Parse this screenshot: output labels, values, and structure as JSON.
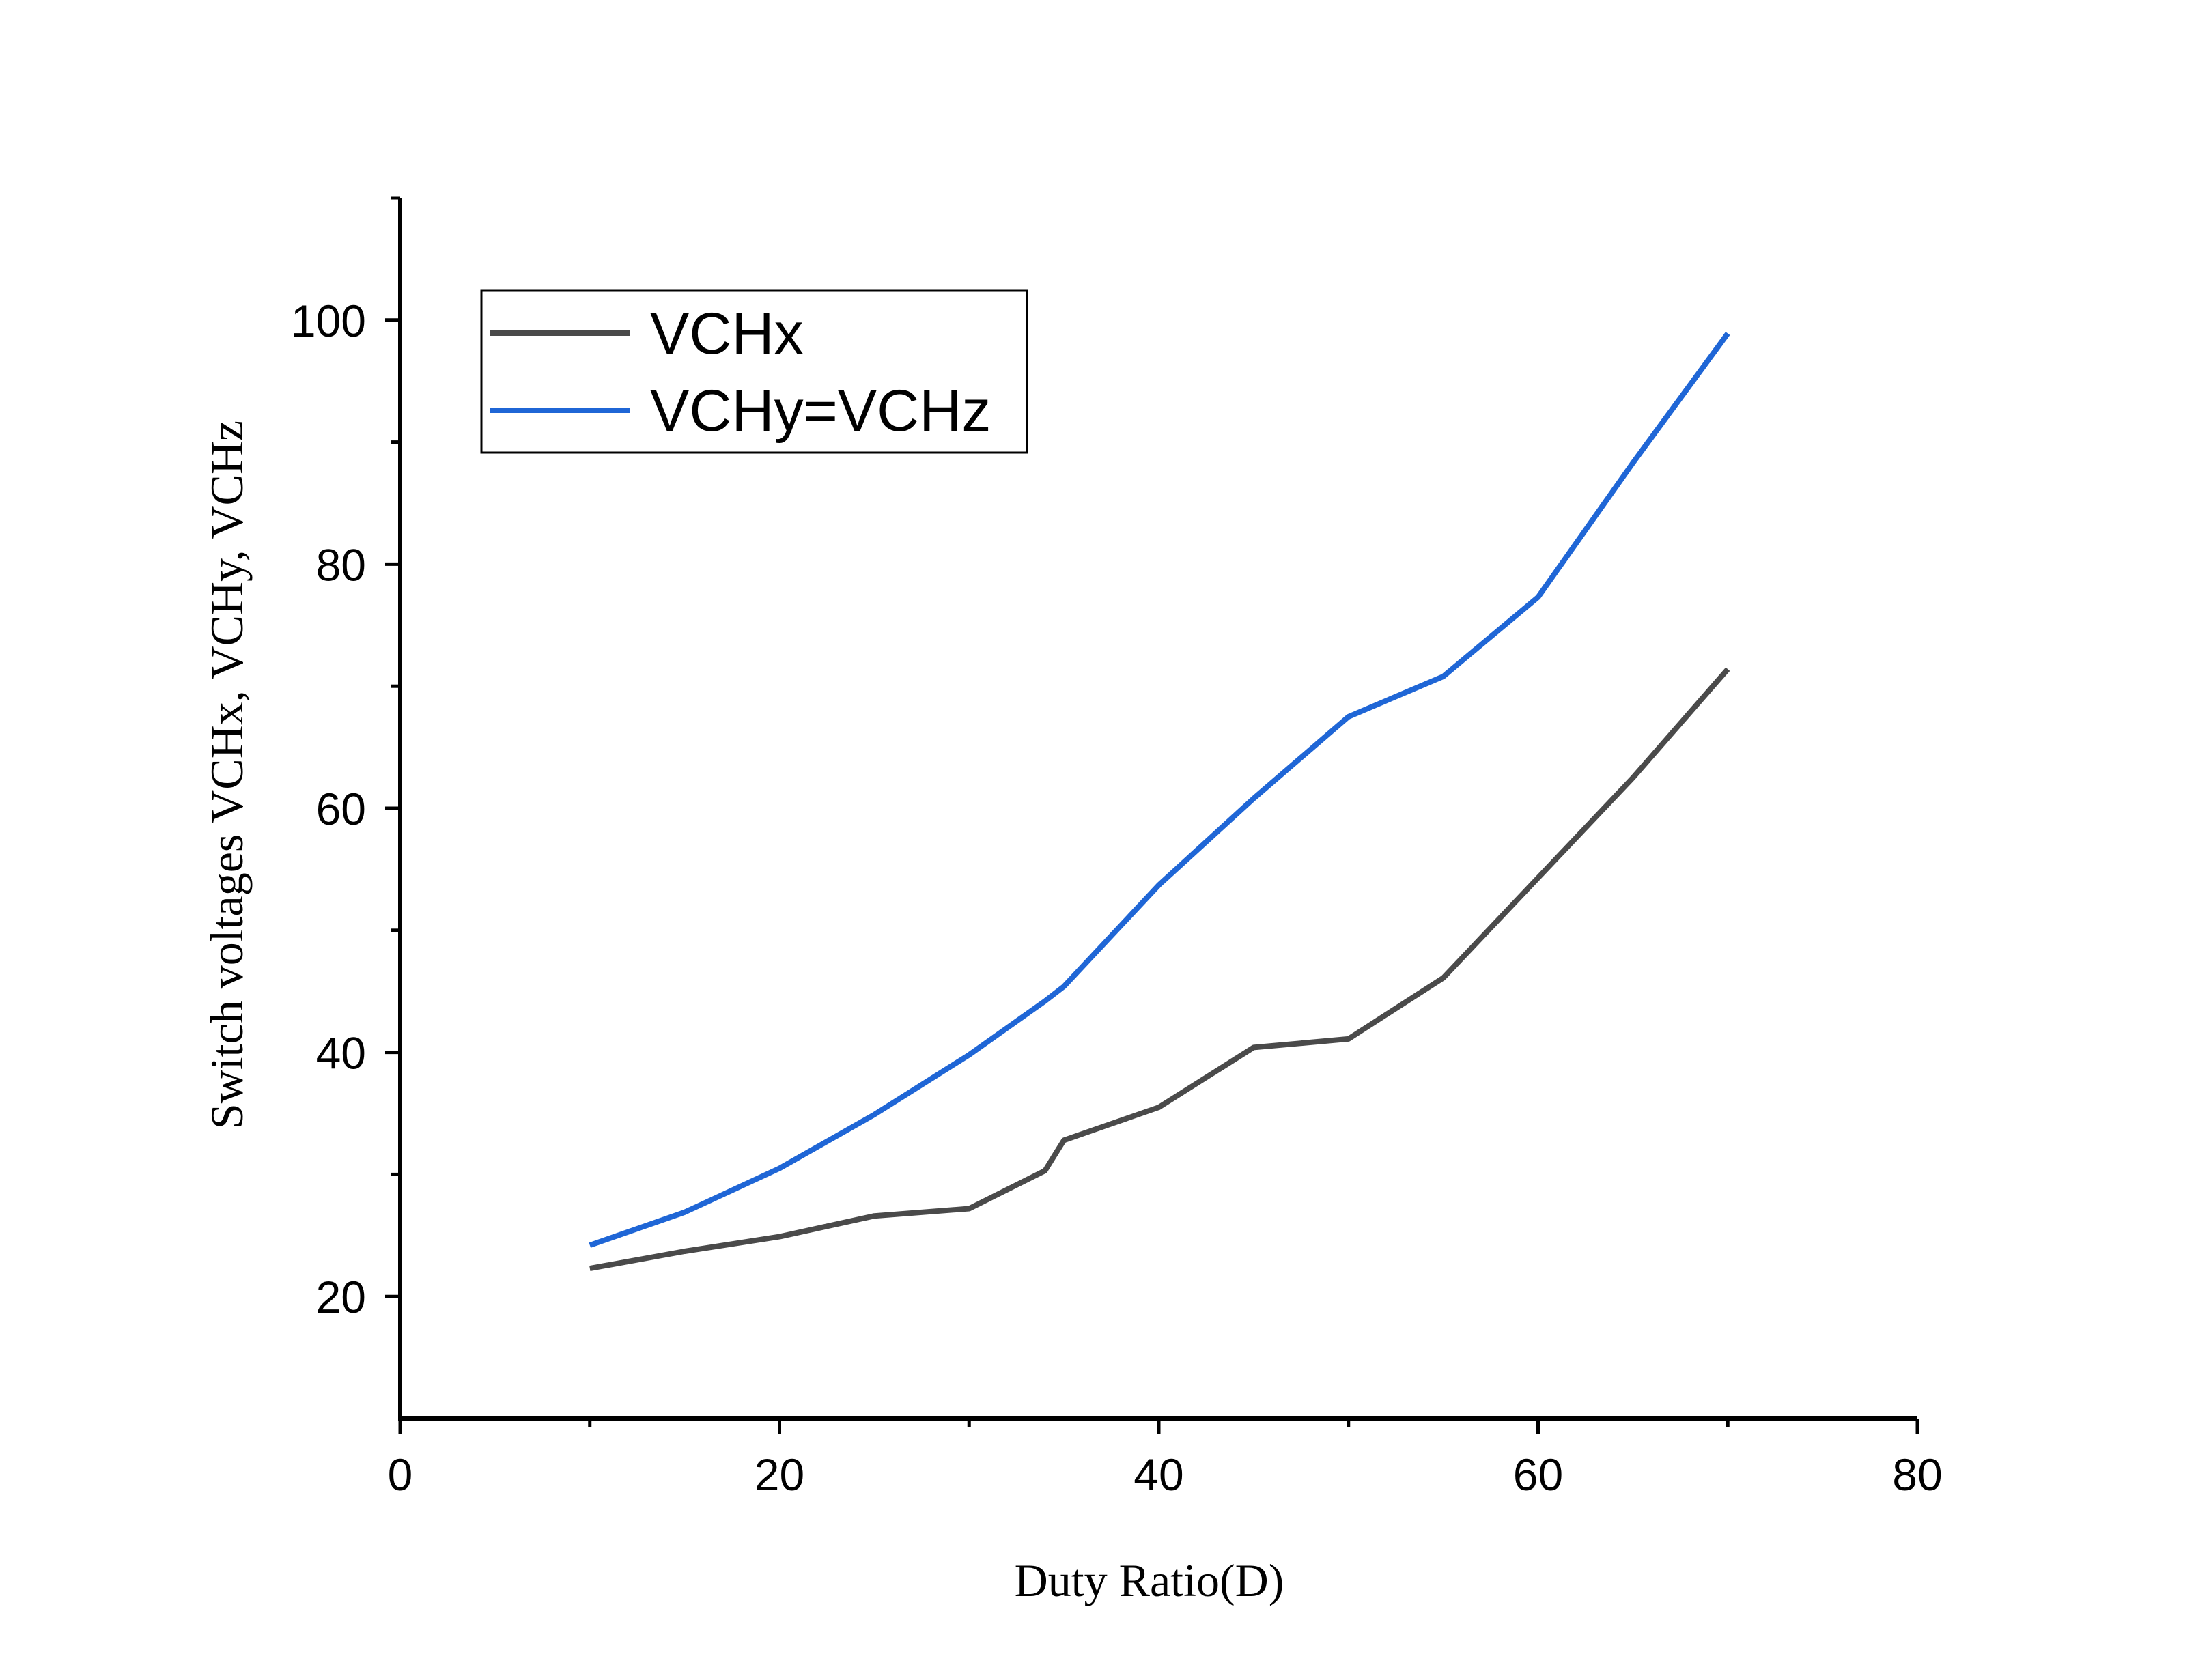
{
  "chart_data": {
    "type": "line",
    "title": "",
    "xlabel": "Duty Ratio(D)",
    "ylabel": "Switch voltages VCHx, VCHy, VCHz",
    "xlim": [
      0,
      80
    ],
    "ylim": [
      10,
      110
    ],
    "x_ticks": [
      0,
      20,
      40,
      60,
      80
    ],
    "y_ticks": [
      20,
      40,
      60,
      80,
      100
    ],
    "x_tick_labels": [
      "0",
      "20",
      "40",
      "60",
      "80"
    ],
    "y_tick_labels": [
      "20",
      "40",
      "60",
      "80",
      "100"
    ],
    "x_minor_ticks": [
      10,
      30,
      50,
      70
    ],
    "y_minor_ticks": [
      30,
      50,
      70,
      90,
      110
    ],
    "grid": false,
    "legend_position": "top-left",
    "series": [
      {
        "name": "VCHx",
        "color": "#4a4a4a",
        "x": [
          10,
          15,
          20,
          25,
          30,
          34,
          35,
          40,
          45,
          50,
          55,
          60,
          65,
          70
        ],
        "y": [
          22.3,
          23.7,
          24.9,
          26.6,
          27.2,
          30.3,
          32.8,
          35.5,
          40.4,
          41.1,
          46.1,
          54.3,
          62.5,
          71.4
        ]
      },
      {
        "name": "VCHy=VCHz",
        "color": "#1f66d6",
        "x": [
          10,
          15,
          20,
          25,
          30,
          34,
          35,
          40,
          45,
          50,
          55,
          60,
          65,
          70
        ],
        "y": [
          24.2,
          26.9,
          30.5,
          34.9,
          39.8,
          44.2,
          45.4,
          53.7,
          60.8,
          67.5,
          70.8,
          77.3,
          88.3,
          98.9
        ]
      }
    ]
  }
}
